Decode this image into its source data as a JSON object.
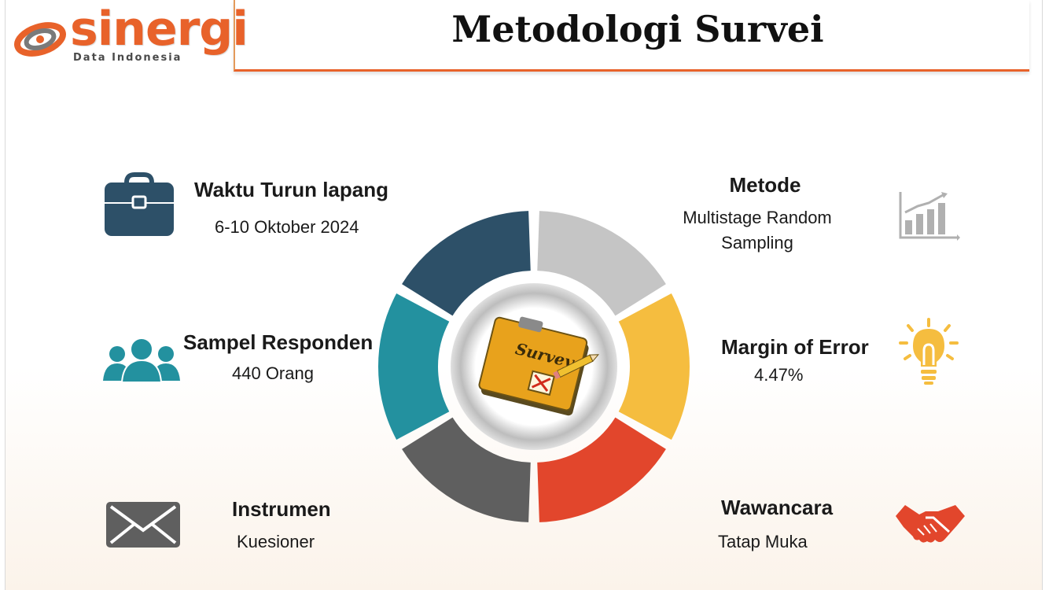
{
  "logo": {
    "name": "sinergi",
    "subtitle": "Data Indonesia"
  },
  "title": "Metodologi Survei",
  "center_label": "Survey",
  "items": {
    "waktu": {
      "title": "Waktu Turun lapang",
      "value": "6-10 Oktober 2024",
      "icon": "briefcase-icon"
    },
    "sampel": {
      "title": "Sampel Responden",
      "value": "440 Orang",
      "icon": "people-icon"
    },
    "instrumen": {
      "title": "Instrumen",
      "value": "Kuesioner",
      "icon": "envelope-icon"
    },
    "metode": {
      "title": "Metode",
      "value_line1": "Multistage Random",
      "value_line2": "Sampling",
      "icon": "bar-chart-icon"
    },
    "margin": {
      "title": "Margin of Error",
      "value": "4.47%",
      "icon": "lightbulb-icon"
    },
    "wawancara": {
      "title": "Wawancara",
      "value": "Tatap Muka",
      "icon": "handshake-icon"
    }
  },
  "colors": {
    "brand": "#e8622a",
    "navy": "#2d5068",
    "light_gray": "#c5c5c5",
    "yellow": "#f5bd3f",
    "red": "#e2462c",
    "dark_gray": "#5f5f5f",
    "teal": "#23919f"
  }
}
